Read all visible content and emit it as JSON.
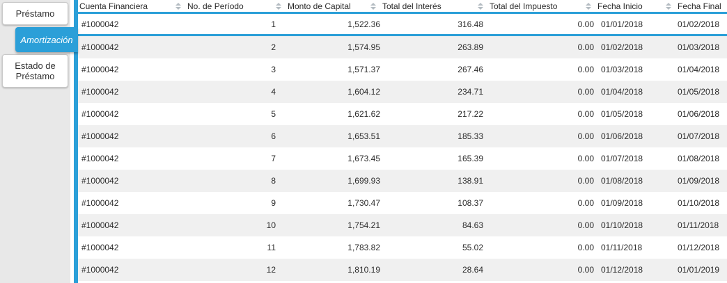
{
  "theme": {
    "accent": "#2b9fd8",
    "stripe": "#f0f0f0",
    "sidebar_bg": "#e8e8e8",
    "text": "#2b2b2b",
    "sort_icon": "#b4bcc2",
    "tab_border": "#c9c9c9"
  },
  "sidebar": {
    "tabs": [
      {
        "label": "Préstamo",
        "active": false
      },
      {
        "label": "Amortización",
        "active": true
      },
      {
        "label": "Estado de Préstamo",
        "active": false
      }
    ]
  },
  "grid": {
    "columns": [
      {
        "label": "Cuenta Financiera",
        "sort_icon": "sort-arrows"
      },
      {
        "label": "No. de Período",
        "sort_icon": "sort-arrows"
      },
      {
        "label": "Monto de Capital",
        "sort_icon": "sort-arrows"
      },
      {
        "label": "Total del Interés",
        "sort_icon": "sort-arrows"
      },
      {
        "label": "Total del Impuesto",
        "sort_icon": "sort-arrows"
      },
      {
        "label": "Fecha Inicio",
        "sort_icon": "sort-arrows"
      },
      {
        "label": "Fecha Final",
        "sort_icon": null
      }
    ],
    "rows": [
      [
        "#1000042",
        "1",
        "1,522.36",
        "316.48",
        "0.00",
        "01/01/2018",
        "01/02/2018"
      ],
      [
        "#1000042",
        "2",
        "1,574.95",
        "263.89",
        "0.00",
        "01/02/2018",
        "01/03/2018"
      ],
      [
        "#1000042",
        "3",
        "1,571.37",
        "267.46",
        "0.00",
        "01/03/2018",
        "01/04/2018"
      ],
      [
        "#1000042",
        "4",
        "1,604.12",
        "234.71",
        "0.00",
        "01/04/2018",
        "01/05/2018"
      ],
      [
        "#1000042",
        "5",
        "1,621.62",
        "217.22",
        "0.00",
        "01/05/2018",
        "01/06/2018"
      ],
      [
        "#1000042",
        "6",
        "1,653.51",
        "185.33",
        "0.00",
        "01/06/2018",
        "01/07/2018"
      ],
      [
        "#1000042",
        "7",
        "1,673.45",
        "165.39",
        "0.00",
        "01/07/2018",
        "01/08/2018"
      ],
      [
        "#1000042",
        "8",
        "1,699.93",
        "138.91",
        "0.00",
        "01/08/2018",
        "01/09/2018"
      ],
      [
        "#1000042",
        "9",
        "1,730.47",
        "108.37",
        "0.00",
        "01/09/2018",
        "01/10/2018"
      ],
      [
        "#1000042",
        "10",
        "1,754.21",
        "84.63",
        "0.00",
        "01/10/2018",
        "01/11/2018"
      ],
      [
        "#1000042",
        "11",
        "1,783.82",
        "55.02",
        "0.00",
        "01/11/2018",
        "01/12/2018"
      ],
      [
        "#1000042",
        "12",
        "1,810.19",
        "28.64",
        "0.00",
        "01/12/2018",
        "01/01/2019"
      ]
    ]
  }
}
